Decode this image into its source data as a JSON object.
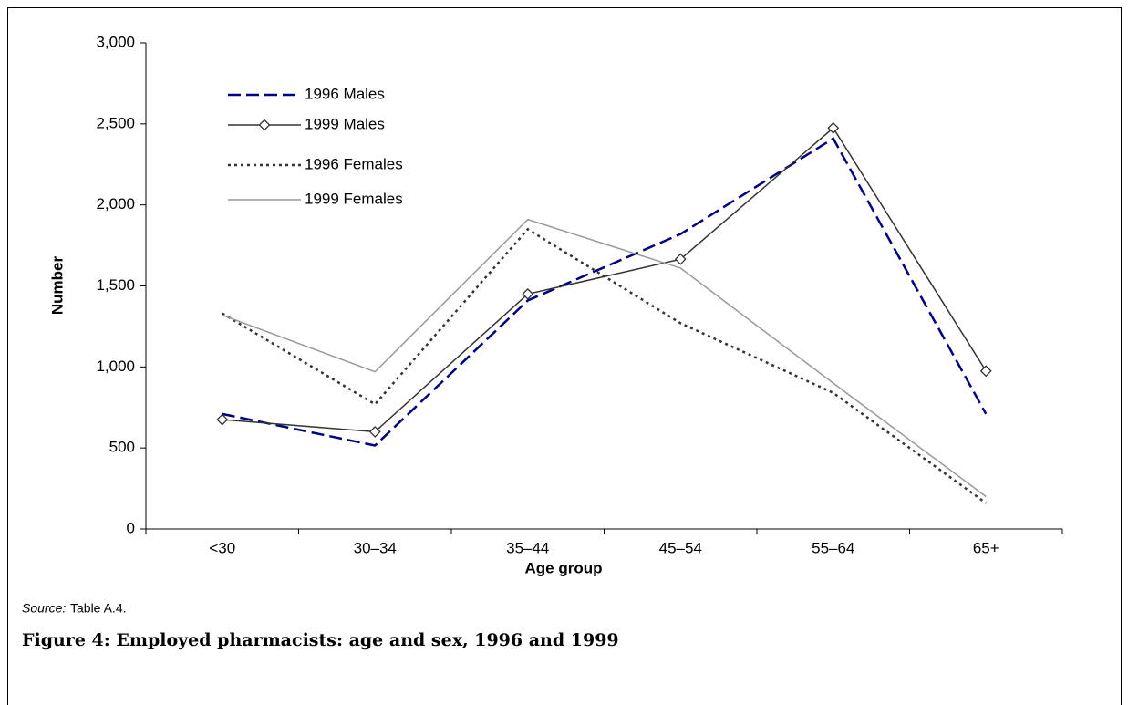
{
  "chart_data": {
    "type": "line",
    "xlabel": "Age group",
    "ylabel": "Number",
    "categories": [
      "<30",
      "30–34",
      "35–44",
      "45–54",
      "55–64",
      "65+"
    ],
    "series": [
      {
        "name": "1996 Males",
        "color": "#000080",
        "style": "dashed",
        "values": [
          710,
          515,
          1410,
          1820,
          2410,
          710
        ]
      },
      {
        "name": "1999 Males",
        "color": "#333333",
        "style": "solid",
        "marker": "diamond",
        "values": [
          675,
          600,
          1450,
          1665,
          2475,
          975
        ]
      },
      {
        "name": "1996 Females",
        "color": "#333333",
        "style": "dotted",
        "values": [
          1330,
          770,
          1850,
          1270,
          840,
          160
        ]
      },
      {
        "name": "1999 Females",
        "color": "#999999",
        "style": "solid",
        "values": [
          1320,
          970,
          1910,
          1610,
          900,
          200
        ]
      }
    ],
    "ylim": [
      0,
      3000
    ],
    "yticks": [
      0,
      500,
      {
        "value": 1000,
        "label": "1,000"
      },
      {
        "value": 1500,
        "label": "1,500"
      },
      {
        "value": 2000,
        "label": "2,000"
      },
      {
        "value": 2500,
        "label": "2,500"
      },
      {
        "value": 3000,
        "label": "3,000"
      }
    ],
    "legend": "upper left",
    "source": {
      "label": "Source:",
      "text": "Table A.4."
    },
    "caption": "Figure 4: Employed pharmacists: age and sex, 1996 and 1999"
  }
}
